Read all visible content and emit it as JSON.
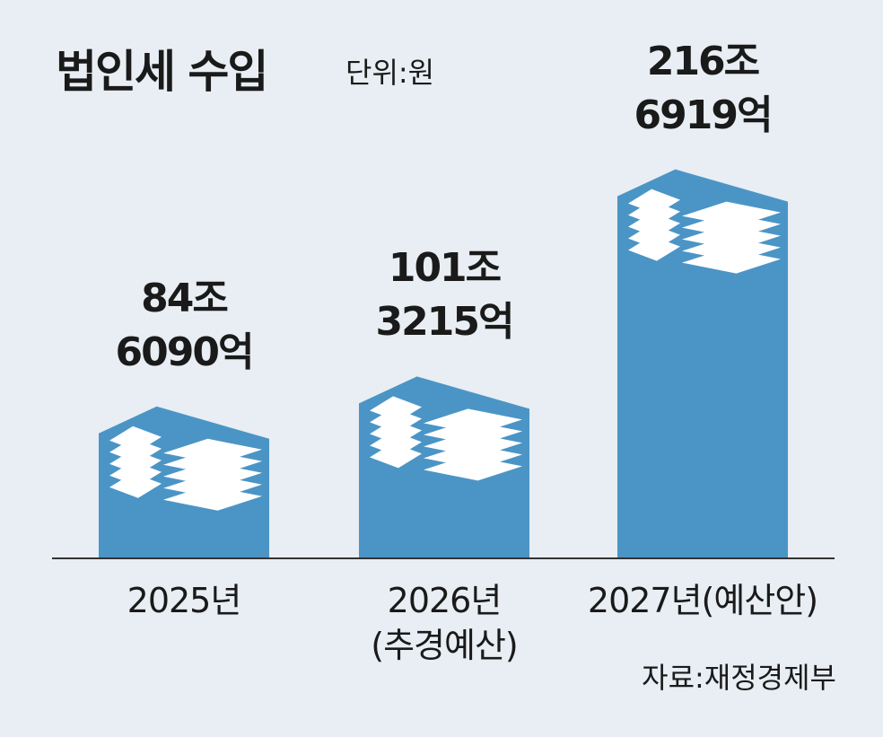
{
  "chart_data": {
    "type": "bar",
    "title": "법인세 수입",
    "unit_label": "단위:원",
    "categories": [
      "2025년",
      "2026년\n(추경예산)",
      "2027년(예산안)"
    ],
    "values": [
      84.609,
      101.3215,
      216.6919
    ],
    "value_labels": [
      "84조\n6090억",
      "101조\n3215억",
      "216조\n6919억"
    ],
    "color": "#4b95c6",
    "source": "자료:재정경제부"
  }
}
